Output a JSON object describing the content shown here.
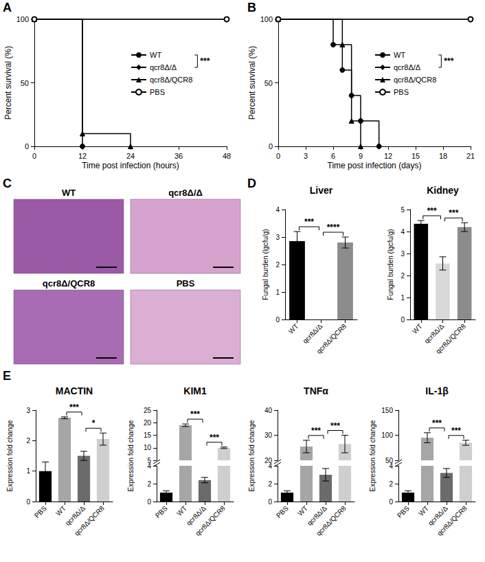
{
  "chart_data": [
    {
      "panel": "A",
      "type": "line",
      "line_style": "step",
      "legend": "right",
      "xlabel": "Time post infection (hours)",
      "ylabel": "Percent survival (%)",
      "xlim": [
        0,
        48
      ],
      "xticks": [
        0,
        12,
        24,
        36,
        48
      ],
      "ylim": [
        0,
        100
      ],
      "yticks": [
        0,
        50,
        100
      ],
      "series": [
        {
          "name": "WT",
          "color": "#000000",
          "marker": "circle",
          "x": [
            0,
            12
          ],
          "values": [
            100,
            0
          ]
        },
        {
          "name": "qcr8Δ/Δ",
          "color": "#000000",
          "marker": "diamond",
          "x": [
            0,
            48
          ],
          "values": [
            100,
            100
          ]
        },
        {
          "name": "qcr8Δ/QCR8",
          "color": "#000000",
          "marker": "triangle",
          "x": [
            0,
            12,
            24
          ],
          "values": [
            100,
            10,
            0
          ]
        },
        {
          "name": "PBS",
          "color": "#000000",
          "marker": "emptyCircle",
          "x": [
            0,
            48
          ],
          "values": [
            100,
            100
          ]
        }
      ],
      "annotations": [
        {
          "from": "WT",
          "to": "qcr8Δ/Δ",
          "text": "***"
        }
      ]
    },
    {
      "panel": "B",
      "type": "line",
      "line_style": "step",
      "legend": "right",
      "xlabel": "Time post infection (days)",
      "ylabel": "Percent survival (%)",
      "xlim": [
        0,
        21
      ],
      "xticks": [
        0,
        3,
        6,
        9,
        12,
        15,
        18,
        21
      ],
      "ylim": [
        0,
        100
      ],
      "yticks": [
        0,
        50,
        100
      ],
      "series": [
        {
          "name": "WT",
          "color": "#000000",
          "marker": "circle",
          "x": [
            0,
            6,
            7,
            8,
            9,
            11
          ],
          "values": [
            100,
            80,
            60,
            40,
            20,
            0
          ]
        },
        {
          "name": "qcr8Δ/Δ",
          "color": "#000000",
          "marker": "diamond",
          "x": [
            0,
            21
          ],
          "values": [
            100,
            100
          ]
        },
        {
          "name": "qcr8Δ/QCR8",
          "color": "#000000",
          "marker": "triangle",
          "x": [
            0,
            7,
            8,
            9
          ],
          "values": [
            100,
            80,
            20,
            0
          ]
        },
        {
          "name": "PBS",
          "color": "#000000",
          "marker": "emptyCircle",
          "x": [
            0,
            21
          ],
          "values": [
            100,
            100
          ]
        }
      ],
      "annotations": [
        {
          "from": "WT",
          "to": "qcr8Δ/Δ",
          "text": "***"
        }
      ]
    },
    {
      "panel": "C",
      "type": "image",
      "titles": [
        "WT",
        "qcr8Δ/Δ",
        "qcr8Δ/QCR8",
        "PBS"
      ]
    },
    {
      "panel": "D",
      "type": "bar",
      "ylabel": "Fungal burden (lgcfu/g)",
      "charts": [
        {
          "title": "Liver",
          "categories": [
            "WT",
            "qcr8Δ/Δ",
            "qcr8Δ/QCR8"
          ],
          "values": [
            2.85,
            0,
            2.8
          ],
          "errors": [
            0.35,
            0,
            0.2
          ],
          "colors": [
            "#000000",
            "#d9d9d9",
            "#8c8c8c"
          ],
          "ylim": [
            0,
            4
          ],
          "yticks": [
            0,
            1,
            2,
            3,
            4
          ],
          "annotations": [
            {
              "from": "WT",
              "to": "qcr8Δ/Δ",
              "text": "***"
            },
            {
              "from": "qcr8Δ/Δ",
              "to": "qcr8Δ/QCR8",
              "text": "****"
            }
          ]
        },
        {
          "title": "Kidney",
          "categories": [
            "WT",
            "qcr8Δ/Δ",
            "qcr8Δ/QCR8"
          ],
          "values": [
            4.35,
            2.55,
            4.2
          ],
          "errors": [
            0.15,
            0.3,
            0.2
          ],
          "colors": [
            "#000000",
            "#d9d9d9",
            "#8c8c8c"
          ],
          "ylim": [
            0,
            5
          ],
          "yticks": [
            0,
            1,
            2,
            3,
            4,
            5
          ],
          "annotations": [
            {
              "from": "WT",
              "to": "qcr8Δ/Δ",
              "text": "***"
            },
            {
              "from": "qcr8Δ/Δ",
              "to": "qcr8Δ/QCR8",
              "text": "***"
            }
          ]
        }
      ]
    },
    {
      "panel": "E",
      "type": "bar",
      "ylabel": "Expression fold change",
      "charts": [
        {
          "title": "MACTIN",
          "categories": [
            "PBS",
            "WT",
            "qcr8Δ/Δ",
            "qcr8Δ/QCR8"
          ],
          "values": [
            1.0,
            2.75,
            1.5,
            2.05
          ],
          "errors": [
            0.3,
            0.03,
            0.15,
            0.2
          ],
          "colors": [
            "#000000",
            "#a6a6a6",
            "#6b6b6b",
            "#cfcfcf"
          ],
          "ylim": [
            0,
            3
          ],
          "yticks": [
            0,
            1,
            2,
            3
          ],
          "annotations": [
            {
              "from": "WT",
              "to": "qcr8Δ/Δ",
              "text": "***"
            },
            {
              "from": "qcr8Δ/Δ",
              "to": "qcr8Δ/QCR8",
              "text": "*"
            }
          ]
        },
        {
          "title": "KIM1",
          "categories": [
            "PBS",
            "WT",
            "qcr8Δ/Δ",
            "qcr8Δ/QCR8"
          ],
          "values": [
            1.0,
            19,
            2.4,
            10
          ],
          "errors": [
            0.2,
            0.5,
            0.3,
            0.3
          ],
          "colors": [
            "#000000",
            "#a6a6a6",
            "#6b6b6b",
            "#cfcfcf"
          ],
          "ylim": [
            0,
            4
          ],
          "yticks": [
            0,
            2,
            4
          ],
          "ylim_upper": [
            5,
            25
          ],
          "yticks_upper": [
            5,
            10,
            15,
            20,
            25
          ],
          "annotations": [
            {
              "from": "WT",
              "to": "qcr8Δ/Δ",
              "text": "***"
            },
            {
              "from": "qcr8Δ/Δ",
              "to": "qcr8Δ/QCR8",
              "text": "***"
            }
          ]
        },
        {
          "title": "TNFα",
          "categories": [
            "PBS",
            "WT",
            "qcr8Δ/Δ",
            "qcr8Δ/QCR8"
          ],
          "values": [
            1.0,
            25.5,
            3.0,
            26.5
          ],
          "errors": [
            0.2,
            2.5,
            0.7,
            3.5
          ],
          "colors": [
            "#000000",
            "#a6a6a6",
            "#6b6b6b",
            "#cfcfcf"
          ],
          "ylim": [
            0,
            4
          ],
          "yticks": [
            0,
            2,
            4
          ],
          "ylim_upper": [
            20,
            40
          ],
          "yticks_upper": [
            20,
            30,
            40
          ],
          "annotations": [
            {
              "from": "WT",
              "to": "qcr8Δ/Δ",
              "text": "***"
            },
            {
              "from": "qcr8Δ/Δ",
              "to": "qcr8Δ/QCR8",
              "text": "***"
            }
          ]
        },
        {
          "title": "IL-1β",
          "categories": [
            "PBS",
            "WT",
            "qcr8Δ/Δ",
            "qcr8Δ/QCR8"
          ],
          "values": [
            1.0,
            95,
            3.2,
            85
          ],
          "errors": [
            0.2,
            10,
            0.5,
            5
          ],
          "colors": [
            "#000000",
            "#a6a6a6",
            "#6b6b6b",
            "#cfcfcf"
          ],
          "ylim": [
            0,
            4
          ],
          "yticks": [
            0,
            2,
            4
          ],
          "ylim_upper": [
            50,
            150
          ],
          "yticks_upper": [
            50,
            100,
            150
          ],
          "annotations": [
            {
              "from": "WT",
              "to": "qcr8Δ/Δ",
              "text": "***"
            },
            {
              "from": "qcr8Δ/Δ",
              "to": "qcr8Δ/QCR8",
              "text": "***"
            }
          ]
        }
      ]
    }
  ]
}
